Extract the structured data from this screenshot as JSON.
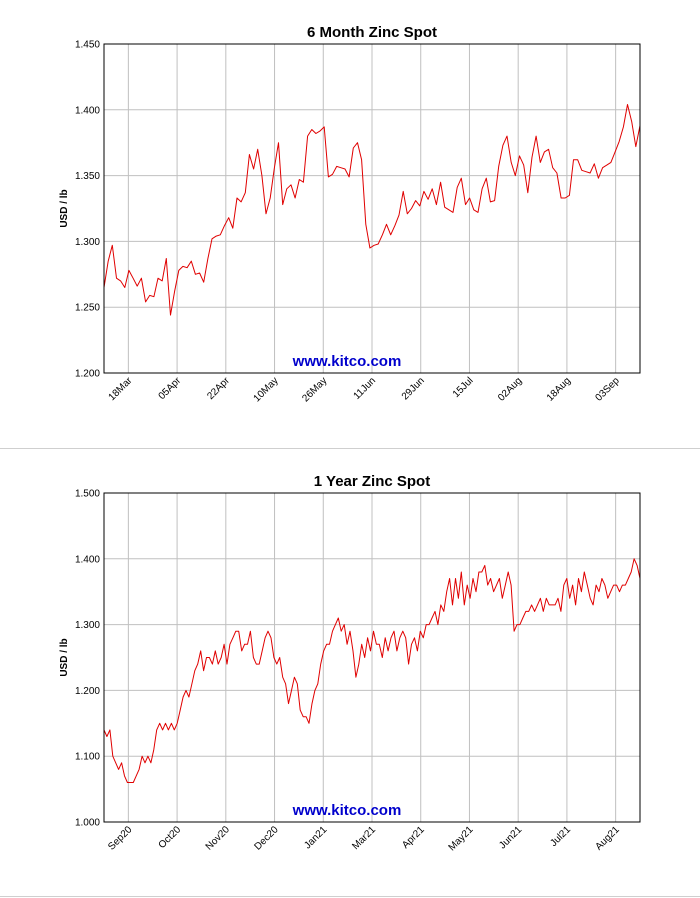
{
  "colors": {
    "line": "#e00000",
    "grid": "#c0c0c0",
    "watermark": "#0000cc",
    "frame": "#000000"
  },
  "chart_data": [
    {
      "type": "line",
      "title": "6 Month Zinc Spot",
      "ylabel": "USD / lb",
      "watermark": "www.kitco.com",
      "ylim": [
        1.2,
        1.45
      ],
      "yticks": [
        "1.450",
        "1.400",
        "1.350",
        "1.300",
        "1.250",
        "1.200"
      ],
      "ytick_values": [
        1.45,
        1.4,
        1.35,
        1.3,
        1.25,
        1.2
      ],
      "xticks": [
        "18Mar",
        "05Apr",
        "22Apr",
        "10May",
        "26May",
        "11Jun",
        "29Jun",
        "15Jul",
        "02Aug",
        "18Aug",
        "03Sep"
      ],
      "grid": true,
      "values": [
        1.265,
        1.285,
        1.297,
        1.272,
        1.27,
        1.265,
        1.278,
        1.272,
        1.266,
        1.272,
        1.254,
        1.259,
        1.258,
        1.272,
        1.27,
        1.287,
        1.244,
        1.262,
        1.278,
        1.281,
        1.28,
        1.285,
        1.275,
        1.276,
        1.269,
        1.287,
        1.302,
        1.304,
        1.305,
        1.312,
        1.318,
        1.31,
        1.333,
        1.33,
        1.337,
        1.366,
        1.355,
        1.37,
        1.35,
        1.321,
        1.333,
        1.356,
        1.375,
        1.328,
        1.34,
        1.343,
        1.333,
        1.347,
        1.345,
        1.38,
        1.385,
        1.382,
        1.384,
        1.387,
        1.349,
        1.351,
        1.357,
        1.356,
        1.355,
        1.349,
        1.371,
        1.375,
        1.362,
        1.313,
        1.295,
        1.297,
        1.298,
        1.305,
        1.313,
        1.305,
        1.312,
        1.32,
        1.338,
        1.321,
        1.325,
        1.331,
        1.327,
        1.338,
        1.332,
        1.34,
        1.328,
        1.345,
        1.326,
        1.324,
        1.322,
        1.341,
        1.348,
        1.328,
        1.333,
        1.324,
        1.322,
        1.34,
        1.348,
        1.33,
        1.331,
        1.357,
        1.373,
        1.38,
        1.36,
        1.35,
        1.365,
        1.358,
        1.337,
        1.364,
        1.38,
        1.36,
        1.368,
        1.37,
        1.356,
        1.352,
        1.333,
        1.333,
        1.335,
        1.362,
        1.362,
        1.354,
        1.353,
        1.352,
        1.359,
        1.348,
        1.356,
        1.358,
        1.36,
        1.368,
        1.376,
        1.387,
        1.404,
        1.391,
        1.372,
        1.388
      ]
    },
    {
      "type": "line",
      "title": "1 Year Zinc Spot",
      "ylabel": "USD / lb",
      "watermark": "www.kitco.com",
      "ylim": [
        1.0,
        1.5
      ],
      "yticks": [
        "1.500",
        "1.400",
        "1.300",
        "1.200",
        "1.100",
        "1.000"
      ],
      "ytick_values": [
        1.5,
        1.4,
        1.3,
        1.2,
        1.1,
        1.0
      ],
      "xticks": [
        "Sep20",
        "Oct20",
        "Nov20",
        "Dec20",
        "Jan21",
        "Mar21",
        "Apr21",
        "May21",
        "Jun21",
        "Jul21",
        "Aug21"
      ],
      "grid": true,
      "values": [
        1.14,
        1.13,
        1.14,
        1.1,
        1.09,
        1.08,
        1.09,
        1.07,
        1.06,
        1.06,
        1.06,
        1.07,
        1.08,
        1.1,
        1.09,
        1.1,
        1.09,
        1.11,
        1.14,
        1.15,
        1.14,
        1.15,
        1.14,
        1.15,
        1.14,
        1.15,
        1.17,
        1.19,
        1.2,
        1.19,
        1.21,
        1.23,
        1.24,
        1.26,
        1.23,
        1.25,
        1.25,
        1.24,
        1.26,
        1.24,
        1.25,
        1.27,
        1.24,
        1.27,
        1.28,
        1.29,
        1.29,
        1.26,
        1.27,
        1.27,
        1.29,
        1.25,
        1.24,
        1.24,
        1.26,
        1.28,
        1.29,
        1.28,
        1.25,
        1.24,
        1.25,
        1.22,
        1.21,
        1.18,
        1.2,
        1.22,
        1.21,
        1.17,
        1.16,
        1.16,
        1.15,
        1.18,
        1.2,
        1.21,
        1.24,
        1.26,
        1.27,
        1.27,
        1.29,
        1.3,
        1.31,
        1.29,
        1.3,
        1.27,
        1.29,
        1.26,
        1.22,
        1.24,
        1.27,
        1.25,
        1.28,
        1.26,
        1.29,
        1.27,
        1.27,
        1.25,
        1.28,
        1.26,
        1.28,
        1.29,
        1.26,
        1.28,
        1.29,
        1.28,
        1.24,
        1.27,
        1.28,
        1.26,
        1.29,
        1.28,
        1.3,
        1.3,
        1.31,
        1.32,
        1.3,
        1.33,
        1.32,
        1.35,
        1.37,
        1.33,
        1.37,
        1.34,
        1.38,
        1.33,
        1.36,
        1.34,
        1.37,
        1.35,
        1.38,
        1.38,
        1.39,
        1.36,
        1.37,
        1.35,
        1.36,
        1.37,
        1.34,
        1.36,
        1.38,
        1.36,
        1.29,
        1.3,
        1.3,
        1.31,
        1.32,
        1.32,
        1.33,
        1.32,
        1.33,
        1.34,
        1.32,
        1.34,
        1.33,
        1.33,
        1.33,
        1.34,
        1.32,
        1.36,
        1.37,
        1.34,
        1.36,
        1.33,
        1.37,
        1.35,
        1.38,
        1.36,
        1.34,
        1.33,
        1.36,
        1.35,
        1.37,
        1.36,
        1.34,
        1.35,
        1.36,
        1.36,
        1.35,
        1.36,
        1.36,
        1.37,
        1.38,
        1.4,
        1.39,
        1.37
      ]
    }
  ]
}
